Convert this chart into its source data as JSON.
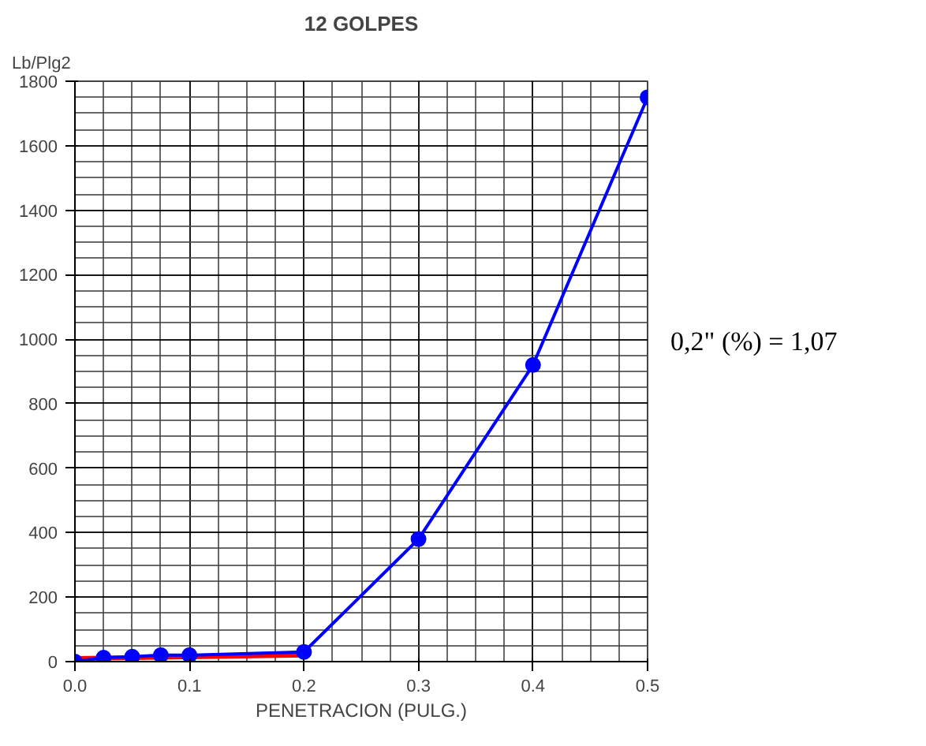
{
  "chart_data": {
    "type": "line",
    "title": "12 GOLPES",
    "xlabel": "PENETRACION (PULG.)",
    "ylabel": "Lb/Plg2",
    "xlim": [
      0,
      0.5
    ],
    "xticks": [
      {
        "value": 0,
        "label": "0.0"
      },
      0.1,
      0.2,
      0.3,
      0.4,
      0.5
    ],
    "ylim": [
      0,
      1800
    ],
    "yticks": [
      0,
      200,
      400,
      600,
      800,
      1000,
      1200,
      1400,
      1600,
      1800
    ],
    "grid": true,
    "series": [
      {
        "color": "#ff0000",
        "marker": "none",
        "x": [
          0,
          0.2
        ],
        "values": [
          10,
          20
        ]
      },
      {
        "color": "#0000ff",
        "marker": "circle",
        "x": [
          0,
          0.025,
          0.05,
          0.075,
          0.1,
          0.2,
          0.3,
          0.4,
          0.5
        ],
        "values": [
          0,
          12,
          15,
          20,
          20,
          30,
          380,
          920,
          1750
        ]
      }
    ],
    "annotations": [
      "0,2\" (%) = 1,07"
    ]
  }
}
